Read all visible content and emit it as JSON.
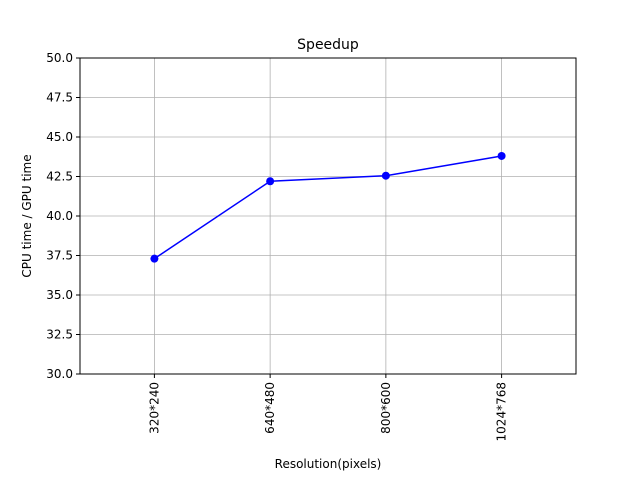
{
  "chart_data": {
    "type": "line",
    "title": "Speedup",
    "xlabel": "Resolution(pixels)",
    "ylabel": "CPU time / GPU time",
    "categories": [
      "320*240",
      "640*480",
      "800*600",
      "1024*768"
    ],
    "series": [
      {
        "values": [
          37.3,
          42.2,
          42.55,
          43.8
        ]
      }
    ],
    "ylim": [
      30.0,
      50.0
    ],
    "yticks": [
      "30.0",
      "32.5",
      "35.0",
      "37.5",
      "40.0",
      "42.5",
      "45.0",
      "47.5",
      "50.0"
    ],
    "grid": true,
    "x_tick_rotation": "vertical",
    "line_color": "#0000ff",
    "marker": "circle"
  }
}
